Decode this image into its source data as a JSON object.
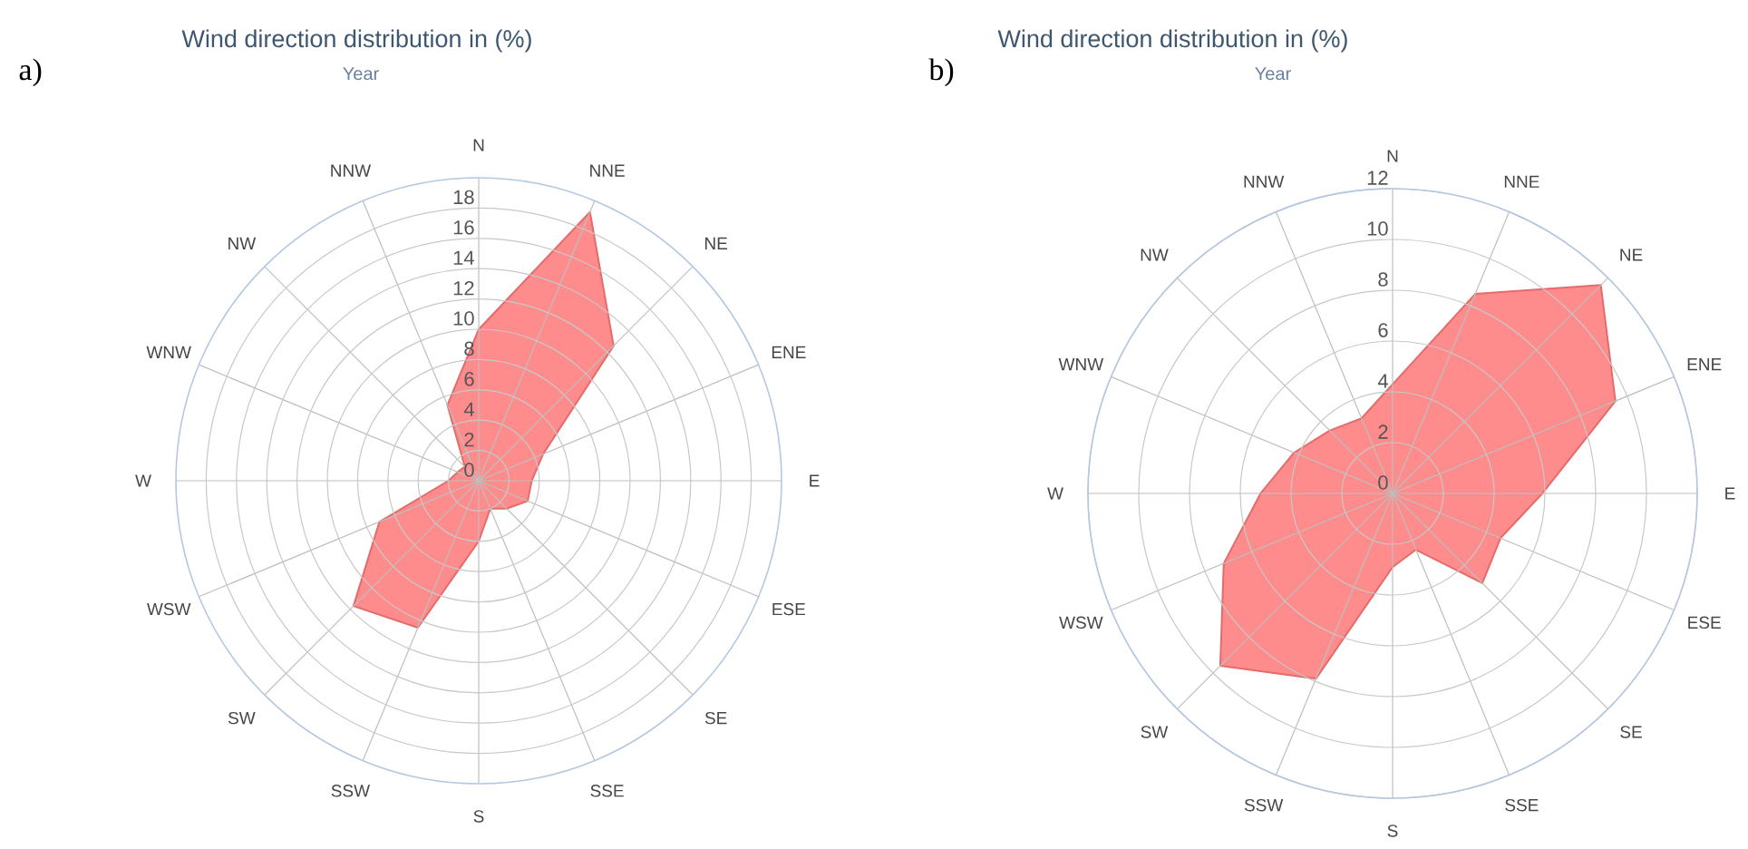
{
  "chart_data": [
    {
      "type": "radar",
      "title": "Wind direction distribution in (%)",
      "subtitle": "Year",
      "annotations": [
        "a)"
      ],
      "categories": [
        "N",
        "NNE",
        "NE",
        "ENE",
        "E",
        "ESE",
        "SE",
        "SSE",
        "S",
        "SSW",
        "SW",
        "WSW",
        "W",
        "WNW",
        "NW",
        "NNW"
      ],
      "series": [
        {
          "color": "#ff8c8c",
          "values": [
            10,
            19.2,
            12.6,
            4.6,
            3.5,
            3.5,
            2.6,
            2,
            4,
            10.5,
            11.7,
            7.1,
            2,
            1.5,
            1.3,
            5.4
          ]
        }
      ],
      "ylim": [
        0,
        20
      ],
      "yticks": [
        0,
        2,
        4,
        6,
        8,
        10,
        12,
        14,
        16,
        18
      ],
      "grid": true
    },
    {
      "type": "radar",
      "title": "Wind direction distribution in (%)",
      "subtitle": "Year",
      "annotations": [
        "b)"
      ],
      "categories": [
        "N",
        "NNE",
        "NE",
        "ENE",
        "E",
        "ESE",
        "SE",
        "SSE",
        "S",
        "SSW",
        "SW",
        "WSW",
        "W",
        "WNW",
        "NW",
        "NNW"
      ],
      "series": [
        {
          "color": "#ff8c8c",
          "values": [
            4.3,
            8.5,
            11.6,
            9.5,
            5.9,
            4.6,
            5,
            2.4,
            2.9,
            7.9,
            9.6,
            7.2,
            5.2,
            4.2,
            3.5,
            3.2
          ]
        }
      ],
      "ylim": [
        0,
        12
      ],
      "yticks": [
        0,
        2,
        4,
        6,
        8,
        10,
        12
      ],
      "grid": true
    }
  ]
}
